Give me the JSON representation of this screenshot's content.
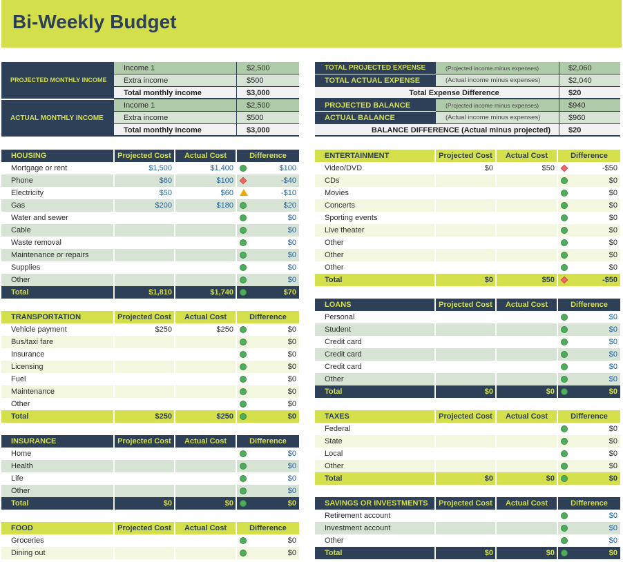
{
  "title": "Bi-Weekly Budget",
  "summary_left": {
    "projected_label": "PROJECTED MONTHLY INCOME",
    "projected_rows": [
      {
        "label": "Income 1",
        "value": "$2,500"
      },
      {
        "label": "Extra income",
        "value": "$500"
      },
      {
        "label": "Total monthly income",
        "value": "$3,000"
      }
    ],
    "actual_label": "ACTUAL MONTHLY INCOME",
    "actual_rows": [
      {
        "label": "Income 1",
        "value": "$2,500"
      },
      {
        "label": "Extra income",
        "value": "$500"
      },
      {
        "label": "Total monthly income",
        "value": "$3,000"
      }
    ]
  },
  "summary_right": {
    "total_projected_expense": {
      "label": "TOTAL PROJECTED EXPENSE",
      "note": "(Projected income minus expenses)",
      "value": "$2,060"
    },
    "total_actual_expense": {
      "label": "TOTAL ACTUAL EXPENSE",
      "note": "(Actual income minus expenses)",
      "value": "$2,040"
    },
    "expense_difference": {
      "label": "Total Expense Difference",
      "value": "$20"
    },
    "projected_balance": {
      "label": "PROJECTED BALANCE",
      "note": "(Projected income minus expenses)",
      "value": "$940"
    },
    "actual_balance": {
      "label": "ACTUAL BALANCE",
      "note": "(Actual income minus expenses)",
      "value": "$960"
    },
    "balance_difference": {
      "label": "BALANCE DIFFERENCE (Actual minus projected)",
      "value": "$20"
    }
  },
  "columns": {
    "projected": "Projected Cost",
    "actual": "Actual Cost",
    "difference": "Difference"
  },
  "total_label": "Total",
  "tables": [
    {
      "id": "housing",
      "title": "HOUSING",
      "style": "dark",
      "side": "left",
      "rows": [
        {
          "label": "Mortgage or rent",
          "projected": "$1,500",
          "actual": "$1,400",
          "status": "green",
          "difference": "$100"
        },
        {
          "label": "Phone",
          "projected": "$60",
          "actual": "$100",
          "status": "red",
          "difference": "-$40"
        },
        {
          "label": "Electricity",
          "projected": "$50",
          "actual": "$60",
          "status": "yellow",
          "difference": "-$10"
        },
        {
          "label": "Gas",
          "projected": "$200",
          "actual": "$180",
          "status": "green",
          "difference": "$20"
        },
        {
          "label": "Water and sewer",
          "projected": "",
          "actual": "",
          "status": "green",
          "difference": "$0"
        },
        {
          "label": "Cable",
          "projected": "",
          "actual": "",
          "status": "green",
          "difference": "$0"
        },
        {
          "label": "Waste removal",
          "projected": "",
          "actual": "",
          "status": "green",
          "difference": "$0"
        },
        {
          "label": "Maintenance or repairs",
          "projected": "",
          "actual": "",
          "status": "green",
          "difference": "$0"
        },
        {
          "label": "Supplies",
          "projected": "",
          "actual": "",
          "status": "green",
          "difference": "$0"
        },
        {
          "label": "Other",
          "projected": "",
          "actual": "",
          "status": "green",
          "difference": "$0"
        }
      ],
      "total": {
        "projected": "$1,810",
        "actual": "$1,740",
        "status": "green",
        "difference": "$70"
      }
    },
    {
      "id": "transportation",
      "title": "TRANSPORTATION",
      "style": "light",
      "side": "left",
      "rows": [
        {
          "label": "Vehicle payment",
          "projected": "$250",
          "actual": "$250",
          "status": "green",
          "difference": "$0"
        },
        {
          "label": "Bus/taxi fare",
          "projected": "",
          "actual": "",
          "status": "green",
          "difference": "$0"
        },
        {
          "label": "Insurance",
          "projected": "",
          "actual": "",
          "status": "green",
          "difference": "$0"
        },
        {
          "label": "Licensing",
          "projected": "",
          "actual": "",
          "status": "green",
          "difference": "$0"
        },
        {
          "label": "Fuel",
          "projected": "",
          "actual": "",
          "status": "green",
          "difference": "$0"
        },
        {
          "label": "Maintenance",
          "projected": "",
          "actual": "",
          "status": "green",
          "difference": "$0"
        },
        {
          "label": "Other",
          "projected": "",
          "actual": "",
          "status": "green",
          "difference": "$0"
        }
      ],
      "total": {
        "projected": "$250",
        "actual": "$250",
        "status": "green",
        "difference": "$0"
      }
    },
    {
      "id": "insurance",
      "title": "INSURANCE",
      "style": "dark",
      "side": "left",
      "rows": [
        {
          "label": "Home",
          "projected": "",
          "actual": "",
          "status": "green",
          "difference": "$0"
        },
        {
          "label": "Health",
          "projected": "",
          "actual": "",
          "status": "green",
          "difference": "$0"
        },
        {
          "label": "Life",
          "projected": "",
          "actual": "",
          "status": "green",
          "difference": "$0"
        },
        {
          "label": "Other",
          "projected": "",
          "actual": "",
          "status": "green",
          "difference": "$0"
        }
      ],
      "total": {
        "projected": "$0",
        "actual": "$0",
        "status": "green",
        "difference": "$0"
      }
    },
    {
      "id": "food",
      "title": "FOOD",
      "style": "light",
      "side": "left",
      "rows": [
        {
          "label": "Groceries",
          "projected": "",
          "actual": "",
          "status": "green",
          "difference": "$0"
        },
        {
          "label": "Dining out",
          "projected": "",
          "actual": "",
          "status": "green",
          "difference": "$0"
        }
      ],
      "total": null
    },
    {
      "id": "entertainment",
      "title": "ENTERTAINMENT",
      "style": "light",
      "side": "right",
      "rows": [
        {
          "label": "Video/DVD",
          "projected": "$0",
          "actual": "$50",
          "status": "red",
          "difference": "-$50"
        },
        {
          "label": "CDs",
          "projected": "",
          "actual": "",
          "status": "green",
          "difference": "$0"
        },
        {
          "label": "Movies",
          "projected": "",
          "actual": "",
          "status": "green",
          "difference": "$0"
        },
        {
          "label": "Concerts",
          "projected": "",
          "actual": "",
          "status": "green",
          "difference": "$0"
        },
        {
          "label": "Sporting events",
          "projected": "",
          "actual": "",
          "status": "green",
          "difference": "$0"
        },
        {
          "label": "Live theater",
          "projected": "",
          "actual": "",
          "status": "green",
          "difference": "$0"
        },
        {
          "label": "Other",
          "projected": "",
          "actual": "",
          "status": "green",
          "difference": "$0"
        },
        {
          "label": "Other",
          "projected": "",
          "actual": "",
          "status": "green",
          "difference": "$0"
        },
        {
          "label": "Other",
          "projected": "",
          "actual": "",
          "status": "green",
          "difference": "$0"
        }
      ],
      "total": {
        "projected": "$0",
        "actual": "$50",
        "status": "red",
        "difference": "-$50"
      }
    },
    {
      "id": "loans",
      "title": "LOANS",
      "style": "dark",
      "side": "right",
      "rows": [
        {
          "label": "Personal",
          "projected": "",
          "actual": "",
          "status": "green",
          "difference": "$0"
        },
        {
          "label": "Student",
          "projected": "",
          "actual": "",
          "status": "green",
          "difference": "$0"
        },
        {
          "label": "Credit card",
          "projected": "",
          "actual": "",
          "status": "green",
          "difference": "$0"
        },
        {
          "label": "Credit card",
          "projected": "",
          "actual": "",
          "status": "green",
          "difference": "$0"
        },
        {
          "label": "Credit card",
          "projected": "",
          "actual": "",
          "status": "green",
          "difference": "$0"
        },
        {
          "label": "Other",
          "projected": "",
          "actual": "",
          "status": "green",
          "difference": "$0"
        }
      ],
      "total": {
        "projected": "$0",
        "actual": "$0",
        "status": "green",
        "difference": "$0"
      }
    },
    {
      "id": "taxes",
      "title": "TAXES",
      "style": "light",
      "side": "right",
      "rows": [
        {
          "label": "Federal",
          "projected": "",
          "actual": "",
          "status": "green",
          "difference": "$0"
        },
        {
          "label": "State",
          "projected": "",
          "actual": "",
          "status": "green",
          "difference": "$0"
        },
        {
          "label": "Local",
          "projected": "",
          "actual": "",
          "status": "green",
          "difference": "$0"
        },
        {
          "label": "Other",
          "projected": "",
          "actual": "",
          "status": "green",
          "difference": "$0"
        }
      ],
      "total": {
        "projected": "$0",
        "actual": "$0",
        "status": "green",
        "difference": "$0"
      }
    },
    {
      "id": "savings",
      "title": "SAVINGS OR INVESTMENTS",
      "style": "dark",
      "side": "right",
      "rows": [
        {
          "label": "Retirement account",
          "projected": "",
          "actual": "",
          "status": "green",
          "difference": "$0"
        },
        {
          "label": "Investment account",
          "projected": "",
          "actual": "",
          "status": "green",
          "difference": "$0"
        },
        {
          "label": "Other",
          "projected": "",
          "actual": "",
          "status": "green",
          "difference": "$0"
        }
      ],
      "total": {
        "projected": "$0",
        "actual": "$0",
        "status": "green",
        "difference": "$0"
      }
    }
  ]
}
